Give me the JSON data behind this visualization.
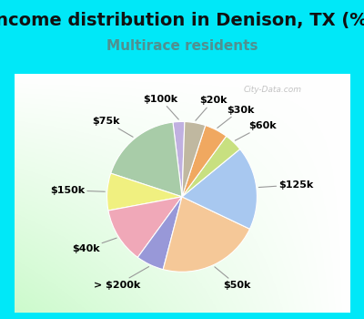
{
  "title": "Income distribution in Denison, TX (%)",
  "subtitle": "Multirace residents",
  "watermark": "City-Data.com",
  "labels": [
    "$100k",
    "$75k",
    "$150k",
    "$40k",
    "> $200k",
    "$50k",
    "$125k",
    "$60k",
    "$30k",
    "$20k"
  ],
  "sizes": [
    2.5,
    18,
    8,
    12,
    6,
    22,
    18,
    4,
    5,
    4.5
  ],
  "colors": [
    "#c0b0e0",
    "#a8cca8",
    "#f0f080",
    "#f0a8b8",
    "#9898d8",
    "#f5c898",
    "#a8c8f0",
    "#c8e080",
    "#f0a860",
    "#c0b8a0"
  ],
  "cyan_color": "#00e8f8",
  "chart_bg": "#dff5e8",
  "title_fontsize": 14,
  "subtitle_fontsize": 11,
  "subtitle_color": "#509090",
  "label_fontsize": 8,
  "startangle": 88,
  "fig_width": 4.0,
  "fig_height": 3.5,
  "title_color": "#111111"
}
